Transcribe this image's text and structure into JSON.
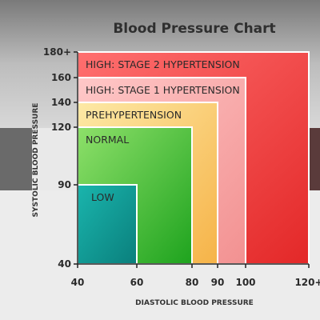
{
  "chart_data": {
    "type": "area",
    "title": "Blood Pressure Chart",
    "xlabel": "DIASTOLIC BLOOD PRESSURE",
    "ylabel": "SYSTOLIC BLOOD PRESSURE",
    "x_ticks": [
      {
        "value": 40,
        "label": "40"
      },
      {
        "value": 60,
        "label": "60"
      },
      {
        "value": 80,
        "label": "80"
      },
      {
        "value": 90,
        "label": "90"
      },
      {
        "value": 100,
        "label": "100"
      },
      {
        "value": 120,
        "label": "120+"
      }
    ],
    "y_ticks": [
      {
        "value": 40,
        "label": "40"
      },
      {
        "value": 90,
        "label": "90"
      },
      {
        "value": 120,
        "label": "120"
      },
      {
        "value": 140,
        "label": "140"
      },
      {
        "value": 160,
        "label": "160"
      },
      {
        "value": 180,
        "label": "180+"
      }
    ],
    "xlim": [
      40,
      120
    ],
    "ylim": [
      40,
      180
    ],
    "zones": [
      {
        "name": "HIGH: STAGE 2 HYPERTENSION",
        "diastolic_max": 120,
        "systolic_max": 180,
        "color_light": "#ff6f6f",
        "color_dark": "#e32828"
      },
      {
        "name": "HIGH: STAGE 1 HYPERTENSION",
        "diastolic_max": 100,
        "systolic_max": 160,
        "color_light": "#ffc8c8",
        "color_dark": "#f29191"
      },
      {
        "name": "PREHYPERTENSION",
        "diastolic_max": 90,
        "systolic_max": 140,
        "color_light": "#fde9a6",
        "color_dark": "#f6b348"
      },
      {
        "name": "NORMAL",
        "diastolic_max": 80,
        "systolic_max": 120,
        "color_light": "#8ee06a",
        "color_dark": "#1ea31e"
      },
      {
        "name": "LOW",
        "diastolic_max": 60,
        "systolic_max": 90,
        "color_light": "#1ab5ad",
        "color_dark": "#0a7f7c"
      }
    ],
    "grid": false
  }
}
